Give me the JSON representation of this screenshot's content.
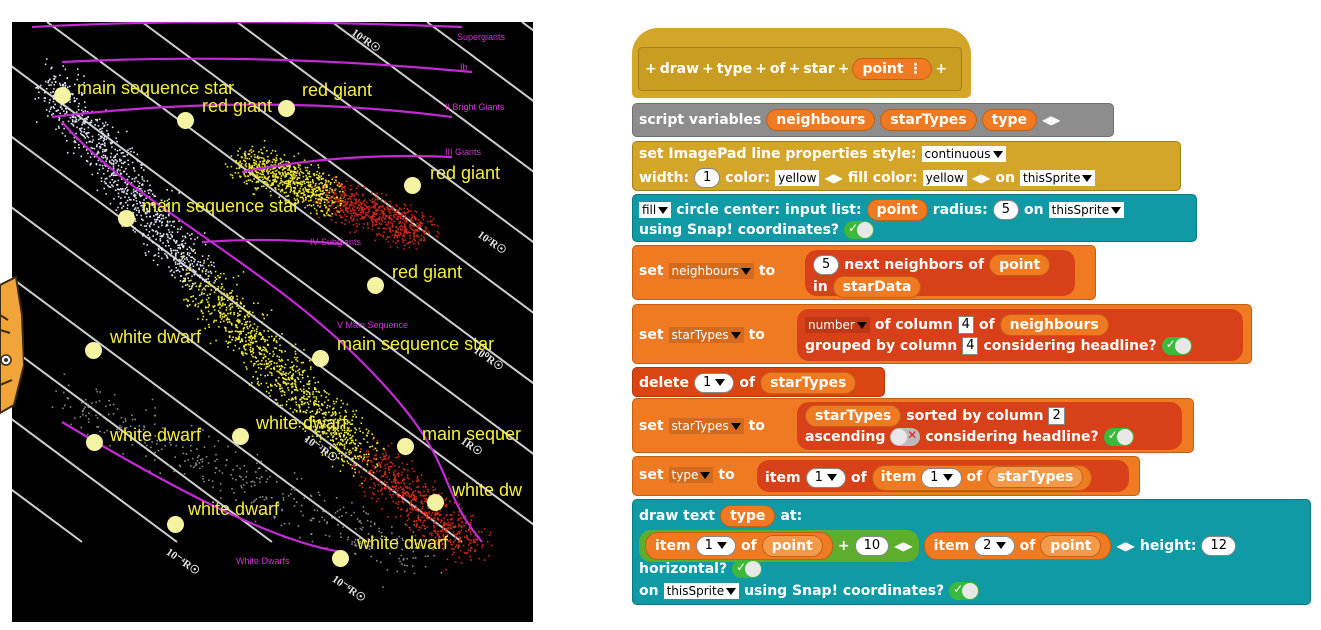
{
  "stage": {
    "labels": [
      {
        "text": "main sequence star",
        "kind": "star"
      },
      {
        "text": "red giant",
        "kind": "star"
      },
      {
        "text": "red giant",
        "kind": "star"
      },
      {
        "text": "red giant",
        "kind": "star"
      },
      {
        "text": "main sequence star",
        "kind": "star"
      },
      {
        "text": "red giant",
        "kind": "star"
      },
      {
        "text": "white dwarf",
        "kind": "star"
      },
      {
        "text": "main sequence star",
        "kind": "star"
      },
      {
        "text": "white dwarf",
        "kind": "star"
      },
      {
        "text": "white dwarf",
        "kind": "star"
      },
      {
        "text": "main sequer",
        "kind": "star"
      },
      {
        "text": "white dw",
        "kind": "star"
      },
      {
        "text": "white dwarf",
        "kind": "star"
      },
      {
        "text": "white dwarf",
        "kind": "star"
      }
    ],
    "luminosity_classes": [
      "Supergiants",
      "Ib",
      "II Bright Giants",
      "III Giants",
      "IV Subgiants",
      "V Main Sequence",
      "White Dwarfs"
    ],
    "radius_labels": [
      "10⁴R☉",
      "10²R☉",
      "10⁰R☉",
      "1R☉",
      "10⁻²R☉",
      "10⁻⁴R☉",
      "10⁻⁶R☉"
    ],
    "colors": {
      "background": "#000000",
      "label": "#f4f03a",
      "curve": "#c22bd4",
      "grid": "#cfcfcf"
    }
  },
  "script": {
    "hat": {
      "words": [
        "draw",
        "type",
        "of",
        "star"
      ],
      "param": "point",
      "param_icon": "⋮"
    },
    "script_vars": {
      "label": "script variables",
      "vars": [
        "neighbours",
        "starTypes",
        "type"
      ]
    },
    "line_props": {
      "line1": "set ImagePad line properties style:",
      "style": "continuous",
      "width_label": "width:",
      "width": "1",
      "color_label": "color:",
      "color": "yellow",
      "fill_label": "fill color:",
      "fill": "yellow",
      "on_label": "on",
      "target": "thisSprite"
    },
    "circle": {
      "mode": "fill",
      "l1": "circle center: input list:",
      "point": "point",
      "radius_label": "radius:",
      "radius": "5",
      "on_label": "on",
      "target": "thisSprite",
      "l2": "using Snap! coordinates?"
    },
    "set_neighbours": {
      "set": "set",
      "var": "neighbours",
      "to": "to",
      "k": "5",
      "next_label": "next neighbors of",
      "point": "point",
      "in_label": "in",
      "data": "starData"
    },
    "set_startypes": {
      "set": "set",
      "var": "starTypes",
      "to": "to",
      "fn": "number",
      "of_col": "of column",
      "col": "4",
      "of": "of",
      "src": "neighbours",
      "grouped": "grouped by column",
      "gcol": "4",
      "headline": "considering headline?"
    },
    "delete": {
      "label": "delete",
      "index": "1",
      "of": "of",
      "list": "starTypes"
    },
    "sort": {
      "set": "set",
      "var": "starTypes",
      "to": "to",
      "list": "starTypes",
      "sorted": "sorted by column",
      "col": "2",
      "asc": "ascending",
      "headline": "considering headline?"
    },
    "set_type": {
      "set": "set",
      "var": "type",
      "to": "to",
      "item": "item",
      "i1": "1",
      "of": "of",
      "i2": "1",
      "list": "starTypes"
    },
    "draw_text": {
      "l1": "draw text",
      "var": "type",
      "at": "at:",
      "item": "item",
      "i1": "1",
      "of": "of",
      "point": "point",
      "plus": "+",
      "offset": "10",
      "i2": "2",
      "height_label": "height:",
      "height": "12",
      "horizontal": "horizontal?",
      "on_label": "on",
      "target": "thisSprite",
      "coords": "using Snap! coordinates?"
    }
  }
}
